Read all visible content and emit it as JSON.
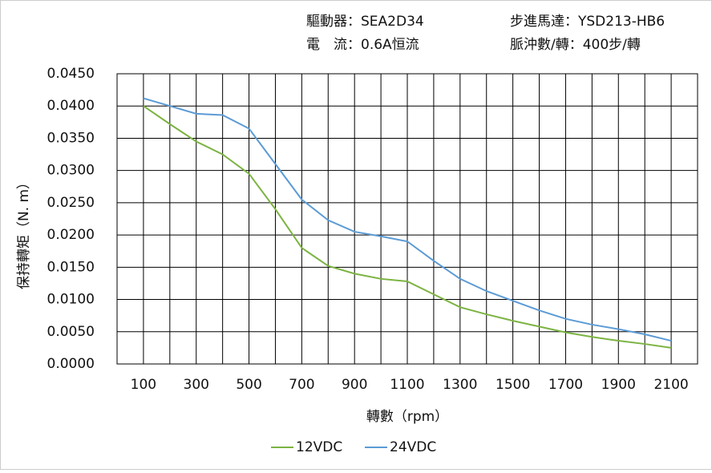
{
  "chart_data": {
    "type": "line",
    "annotations": [
      "驅動器：SEA2D34",
      "步進馬達：YSD213-HB6",
      "電　流：0.6A恒流",
      "脈沖數/轉：400步/轉"
    ],
    "x_label": "轉數（rpm）",
    "y_label": "保持轉矩（N. m）",
    "x": [
      100,
      200,
      300,
      400,
      500,
      600,
      700,
      800,
      900,
      1000,
      1100,
      1200,
      1300,
      1400,
      1500,
      1600,
      1700,
      1800,
      1900,
      2000,
      2100
    ],
    "series": [
      {
        "name": "12VDC",
        "color": "#7cb342",
        "values": [
          0.04,
          0.0372,
          0.0345,
          0.0325,
          0.0295,
          0.024,
          0.018,
          0.0152,
          0.014,
          0.0132,
          0.0128,
          0.0108,
          0.0088,
          0.0077,
          0.0067,
          0.0058,
          0.0049,
          0.0042,
          0.0036,
          0.0031,
          0.0025
        ]
      },
      {
        "name": "24VDC",
        "color": "#5b9bd5",
        "values": [
          0.0412,
          0.04,
          0.0388,
          0.0386,
          0.0365,
          0.031,
          0.0255,
          0.0223,
          0.0205,
          0.0198,
          0.019,
          0.016,
          0.0132,
          0.0113,
          0.0098,
          0.0083,
          0.007,
          0.0061,
          0.0054,
          0.0046,
          0.0036
        ]
      }
    ],
    "xlim": [
      0,
      2200
    ],
    "xticks": [
      100,
      300,
      500,
      700,
      900,
      1100,
      1300,
      1500,
      1700,
      1900,
      2100
    ],
    "x_minor_ticks": [
      200,
      400,
      600,
      800,
      1000,
      1200,
      1400,
      1600,
      1800,
      2000
    ],
    "ylim": [
      0,
      0.045
    ],
    "yticks": [
      {
        "value": 0,
        "label": "0.0000"
      },
      {
        "value": 0.005,
        "label": "0.0050"
      },
      {
        "value": 0.01,
        "label": "0.0100"
      },
      {
        "value": 0.015,
        "label": "0.0150"
      },
      {
        "value": 0.02,
        "label": "0.0200"
      },
      {
        "value": 0.025,
        "label": "0.0250"
      },
      {
        "value": 0.03,
        "label": "0.0300"
      },
      {
        "value": 0.035,
        "label": "0.0350"
      },
      {
        "value": 0.04,
        "label": "0.0400"
      },
      {
        "value": 0.045,
        "label": "0.0450"
      }
    ],
    "grid": true
  }
}
